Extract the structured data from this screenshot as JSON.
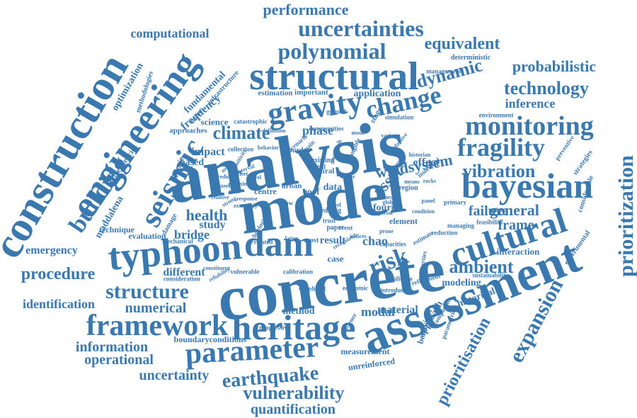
{
  "style": {
    "word_color": "#3a78b0",
    "background_color": "#ffffff"
  },
  "words": [
    {
      "text": "analysis"
    },
    {
      "text": "model"
    },
    {
      "text": "concrete"
    },
    {
      "text": "assessment"
    },
    {
      "text": "construction"
    },
    {
      "text": "engineering"
    },
    {
      "text": "structural"
    },
    {
      "text": "typhoon"
    },
    {
      "text": "bayesian"
    },
    {
      "text": "cultural"
    },
    {
      "text": "heritage"
    },
    {
      "text": "gravity"
    },
    {
      "text": "framework"
    },
    {
      "text": "parameter"
    },
    {
      "text": "seismic"
    },
    {
      "text": "prioritization"
    },
    {
      "text": "polynomial"
    },
    {
      "text": "uncertainties"
    },
    {
      "text": "monitoring"
    },
    {
      "text": "fragility"
    },
    {
      "text": "dam"
    },
    {
      "text": "earthquake"
    },
    {
      "text": "change"
    },
    {
      "text": "risk"
    },
    {
      "text": "climate"
    },
    {
      "text": "structure"
    },
    {
      "text": "expansion"
    },
    {
      "text": "building"
    },
    {
      "text": "technology"
    },
    {
      "text": "dynamic"
    },
    {
      "text": "vibration"
    },
    {
      "text": "vulnerability"
    },
    {
      "text": "ambient"
    },
    {
      "text": "procedure"
    },
    {
      "text": "equivalent"
    },
    {
      "text": "performance"
    },
    {
      "text": "probabilistic"
    },
    {
      "text": "prioritisation"
    },
    {
      "text": "general"
    },
    {
      "text": "numerical"
    },
    {
      "text": "information"
    },
    {
      "text": "operational"
    },
    {
      "text": "quantification"
    },
    {
      "text": "computational"
    },
    {
      "text": "asset"
    },
    {
      "text": "health"
    },
    {
      "text": "failure"
    },
    {
      "text": "uncertainty"
    },
    {
      "text": "identification"
    },
    {
      "text": "inference"
    },
    {
      "text": "frame"
    },
    {
      "text": "windsystem"
    },
    {
      "text": "emergency"
    },
    {
      "text": "bridge"
    },
    {
      "text": "different"
    },
    {
      "text": "frequency"
    },
    {
      "text": "impact"
    },
    {
      "text": "study"
    },
    {
      "text": "chao"
    },
    {
      "text": "modal"
    },
    {
      "text": "material"
    },
    {
      "text": "method"
    },
    {
      "text": "fundamental"
    },
    {
      "text": "science"
    },
    {
      "text": "historical"
    },
    {
      "text": "modeling"
    },
    {
      "text": "interaction"
    },
    {
      "text": "phase"
    },
    {
      "text": "based"
    },
    {
      "text": "optimization"
    },
    {
      "text": "maddalena"
    },
    {
      "text": "application"
    },
    {
      "text": "effect"
    },
    {
      "text": "technique"
    },
    {
      "text": "evaluation"
    },
    {
      "text": "boundaryconditions"
    },
    {
      "text": "measurement"
    },
    {
      "text": "unreinforced"
    },
    {
      "text": "approaches"
    },
    {
      "text": "frequencies"
    },
    {
      "text": "historic"
    },
    {
      "text": "approach"
    },
    {
      "text": "behaviour"
    },
    {
      "text": "methodologies"
    },
    {
      "text": "infrastructure"
    },
    {
      "text": "estimation"
    },
    {
      "text": "important"
    },
    {
      "text": "deterministic"
    },
    {
      "text": "management"
    },
    {
      "text": "environment"
    },
    {
      "text": "catastrophic"
    },
    {
      "text": "collection"
    },
    {
      "text": "damage"
    },
    {
      "text": "mechanical"
    },
    {
      "text": "consideration"
    },
    {
      "text": "progressive"
    },
    {
      "text": "simplified"
    },
    {
      "text": "economic"
    },
    {
      "text": "introduce"
    },
    {
      "text": "fastener"
    },
    {
      "text": "result"
    },
    {
      "text": "case"
    },
    {
      "text": "roof"
    },
    {
      "text": "centre"
    },
    {
      "text": "data"
    },
    {
      "text": "fourier"
    },
    {
      "text": "element"
    },
    {
      "text": "reduction"
    },
    {
      "text": "sustainability"
    },
    {
      "text": "experimental"
    },
    {
      "text": "considerable"
    },
    {
      "text": "strategies"
    },
    {
      "text": "preventive"
    },
    {
      "text": "managing"
    },
    {
      "text": "primary"
    },
    {
      "text": "region"
    },
    {
      "text": "stage"
    },
    {
      "text": "most"
    },
    {
      "text": "paper"
    },
    {
      "text": "urban"
    },
    {
      "text": "natural"
    },
    {
      "text": "existing"
    },
    {
      "text": "burden"
    },
    {
      "text": "civil"
    },
    {
      "text": "trust"
    },
    {
      "text": "shedding"
    },
    {
      "text": "communities"
    },
    {
      "text": "simulation"
    },
    {
      "text": "properties"
    },
    {
      "text": "component"
    },
    {
      "text": "vulnerable"
    },
    {
      "text": "calibration"
    },
    {
      "text": "italian"
    },
    {
      "text": "related"
    },
    {
      "text": "intangible"
    },
    {
      "text": "research"
    },
    {
      "text": "allow"
    },
    {
      "text": "event"
    },
    {
      "text": "capacities"
    },
    {
      "text": "refinement"
    },
    {
      "text": "resilience"
    },
    {
      "text": "parametric"
    },
    {
      "text": "estimate"
    },
    {
      "text": "multilevel"
    },
    {
      "text": "feasibility"
    },
    {
      "text": "scenario"
    },
    {
      "text": "domain"
    },
    {
      "text": "ground"
    },
    {
      "text": "technologies"
    },
    {
      "text": "level"
    },
    {
      "text": "constituent"
    },
    {
      "text": "special"
    },
    {
      "text": "indices"
    },
    {
      "text": "recognized"
    },
    {
      "text": "mode"
    },
    {
      "text": "latter"
    },
    {
      "text": "behavior"
    },
    {
      "text": "reliability"
    },
    {
      "text": "strong"
    },
    {
      "text": "definition"
    },
    {
      "text": "tower"
    },
    {
      "text": "sensitivity"
    },
    {
      "text": "extremely"
    },
    {
      "text": "history"
    },
    {
      "text": "adaptive"
    },
    {
      "text": "various"
    },
    {
      "text": "response"
    },
    {
      "text": "fleet"
    },
    {
      "text": "lower"
    },
    {
      "text": "interval"
    },
    {
      "text": "novel"
    },
    {
      "text": "relative"
    },
    {
      "text": "steel"
    },
    {
      "text": "predict"
    },
    {
      "text": "uses"
    },
    {
      "text": "tools"
    },
    {
      "text": "planning"
    },
    {
      "text": "linear"
    },
    {
      "text": "global"
    },
    {
      "text": "prone"
    },
    {
      "text": "panel"
    },
    {
      "text": "condition"
    },
    {
      "text": "means"
    },
    {
      "text": "rocks"
    },
    {
      "text": "historian"
    },
    {
      "text": "variables"
    },
    {
      "text": "surrogate"
    },
    {
      "text": "analyzed"
    }
  ]
}
